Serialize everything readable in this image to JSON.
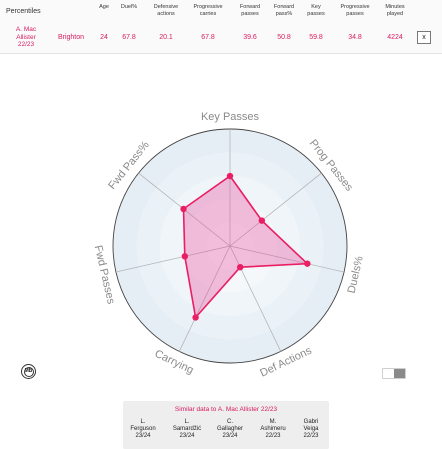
{
  "percentiles": {
    "title": "Percentiles",
    "columns": [
      "Age",
      "Duel%",
      "Defensive actions",
      "Progressive carries",
      "Forward passes",
      "Forward pass%",
      "Key passes",
      "Progressive passes",
      "Minutes played"
    ],
    "column_lines": [
      [
        "Age"
      ],
      [
        "Duel%"
      ],
      [
        "Defensive",
        "actions"
      ],
      [
        "Progressive",
        "carries"
      ],
      [
        "Forward",
        "passes"
      ],
      [
        "Forward",
        "pass%"
      ],
      [
        "Key",
        "passes"
      ],
      [
        "Progressive",
        "passes"
      ],
      [
        "Minutes",
        "played"
      ]
    ],
    "player_lines": [
      "A. Mac",
      "Allister",
      "22/23"
    ],
    "team": "Brighton",
    "values": [
      "24",
      "67.8",
      "20.1",
      "67.8",
      "39.6",
      "50.8",
      "59.8",
      "34.8",
      "4224"
    ],
    "close_label": "x"
  },
  "radar": {
    "axes": [
      "Key Passes",
      "Prog Passes",
      "Duels%",
      "Def Actions",
      "Carrying",
      "Fwd Passes",
      "Fwd Pass%"
    ],
    "values": [
      59.8,
      34.8,
      67.8,
      20.1,
      67.8,
      39.6,
      50.8
    ],
    "max": 100,
    "rings": 5,
    "fill_color": "#e64a9a",
    "line_color": "#e91e63",
    "ring_colors": [
      "#e6eef5",
      "#ebf2f7",
      "#f0f5f9",
      "#f4f8fb",
      "#f8fafc"
    ]
  },
  "logo_text": "MB",
  "similar": {
    "title": "Similar data to A. Mac Allister 22/23",
    "players": [
      {
        "first": "L.",
        "last": "Ferguson",
        "season": "23/24"
      },
      {
        "first": "L.",
        "last": "Samardžić",
        "season": "23/24"
      },
      {
        "first": "C.",
        "last": "Gallagher",
        "season": "23/24"
      },
      {
        "first": "M.",
        "last": "Ashimeru",
        "season": "22/23"
      },
      {
        "first": "Gabri",
        "last": "Veiga",
        "season": "22/23"
      }
    ]
  }
}
